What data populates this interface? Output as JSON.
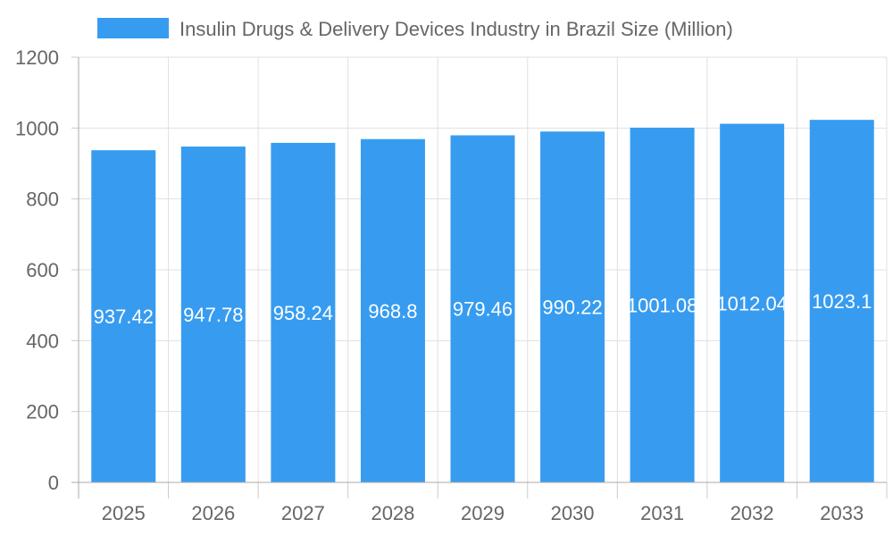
{
  "chart_data": {
    "type": "bar",
    "title": "",
    "xlabel": "",
    "ylabel": "",
    "categories": [
      "2025",
      "2026",
      "2027",
      "2028",
      "2029",
      "2030",
      "2031",
      "2032",
      "2033"
    ],
    "series": [
      {
        "name": "Insulin Drugs & Delivery Devices Industry in Brazil Size (Million)",
        "values": [
          937.42,
          947.78,
          958.24,
          968.8,
          979.46,
          990.22,
          1001.08,
          1012.04,
          1023.1
        ],
        "labels": [
          "937.42",
          "947.78",
          "958.24",
          "968.8",
          "979.46",
          "990.22",
          "1001.08",
          "1012.04",
          "1023.1"
        ],
        "color": "#379CF0"
      }
    ],
    "ylim": [
      0,
      1200
    ],
    "yticks": [
      0,
      200,
      400,
      600,
      800,
      1000,
      1200
    ],
    "grid": true,
    "legend": "top"
  }
}
